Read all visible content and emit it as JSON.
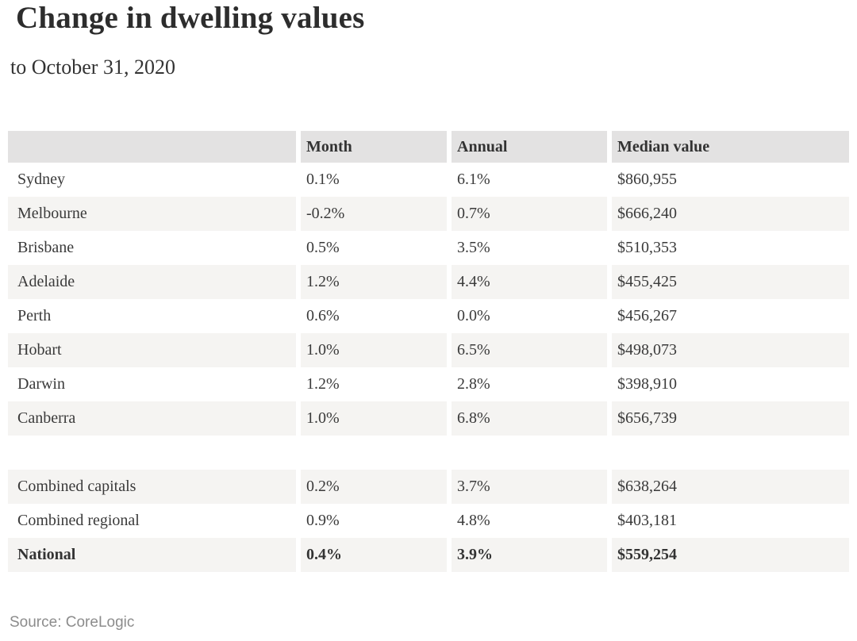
{
  "title": "Change in dwelling values",
  "subtitle": "to October 31, 2020",
  "source": "Source: CoreLogic",
  "colors": {
    "header_bg": "#e3e2e2",
    "stripe_bg": "#f5f4f2",
    "row_bg": "#ffffff",
    "text": "#3a3a3a",
    "title_text": "#2d2d2d",
    "source_text": "#8c8c8c"
  },
  "chart_data": {
    "type": "table",
    "title": "Change in dwelling values",
    "subtitle": "to October 31, 2020",
    "columns": [
      "",
      "Month",
      "Annual",
      "Median value"
    ],
    "rows": [
      [
        "Sydney",
        "0.1%",
        "6.1%",
        "$860,955"
      ],
      [
        "Melbourne",
        "-0.2%",
        "0.7%",
        "$666,240"
      ],
      [
        "Brisbane",
        "0.5%",
        "3.5%",
        "$510,353"
      ],
      [
        "Adelaide",
        "1.2%",
        "4.4%",
        "$455,425"
      ],
      [
        "Perth",
        "0.6%",
        "0.0%",
        "$456,267"
      ],
      [
        "Hobart",
        "1.0%",
        "6.5%",
        "$498,073"
      ],
      [
        "Darwin",
        "1.2%",
        "2.8%",
        "$398,910"
      ],
      [
        "Canberra",
        "1.0%",
        "6.8%",
        "$656,739"
      ]
    ],
    "summary_rows": [
      [
        "Combined capitals",
        "0.2%",
        "3.7%",
        "$638,264"
      ],
      [
        "Combined regional",
        "0.9%",
        "4.8%",
        "$403,181"
      ],
      [
        "National",
        "0.4%",
        "3.9%",
        "$559,254"
      ]
    ],
    "source": "Source: CoreLogic",
    "layout": {
      "grid": false,
      "legend": "none",
      "striped_rows": true
    }
  }
}
